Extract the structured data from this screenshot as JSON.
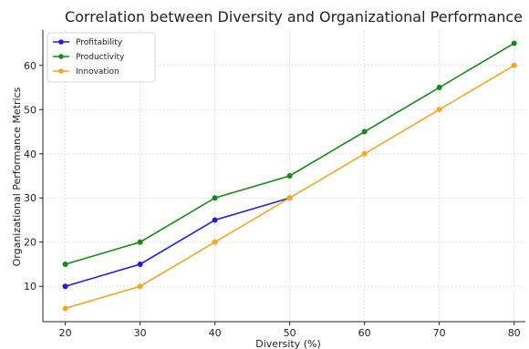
{
  "chart_data": {
    "type": "line",
    "title": "Correlation between Diversity and Organizational Performance",
    "xlabel": "Diversity (%)",
    "ylabel": "Organizational Performance Metrics",
    "x": [
      20,
      30,
      40,
      50,
      60,
      70,
      80
    ],
    "xticks": [
      20,
      30,
      40,
      50,
      60,
      70,
      80
    ],
    "yticks": [
      10,
      20,
      30,
      40,
      50,
      60
    ],
    "xlim": [
      17,
      81.5
    ],
    "ylim": [
      2,
      68
    ],
    "grid": true,
    "legend_position": "top-left",
    "series": [
      {
        "name": "Profitability",
        "color": "#1f1fe0",
        "x": [
          20,
          30,
          40,
          50
        ],
        "values": [
          10,
          15,
          25,
          30
        ]
      },
      {
        "name": "Productivity",
        "color": "#158a15",
        "x": [
          20,
          30,
          40,
          50,
          60,
          70,
          80
        ],
        "values": [
          15,
          20,
          30,
          35,
          45,
          55,
          65
        ]
      },
      {
        "name": "Innovation",
        "color": "#f5a623",
        "x": [
          20,
          30,
          40,
          50,
          60,
          70,
          80
        ],
        "values": [
          5,
          10,
          20,
          30,
          40,
          50,
          60
        ]
      }
    ]
  }
}
